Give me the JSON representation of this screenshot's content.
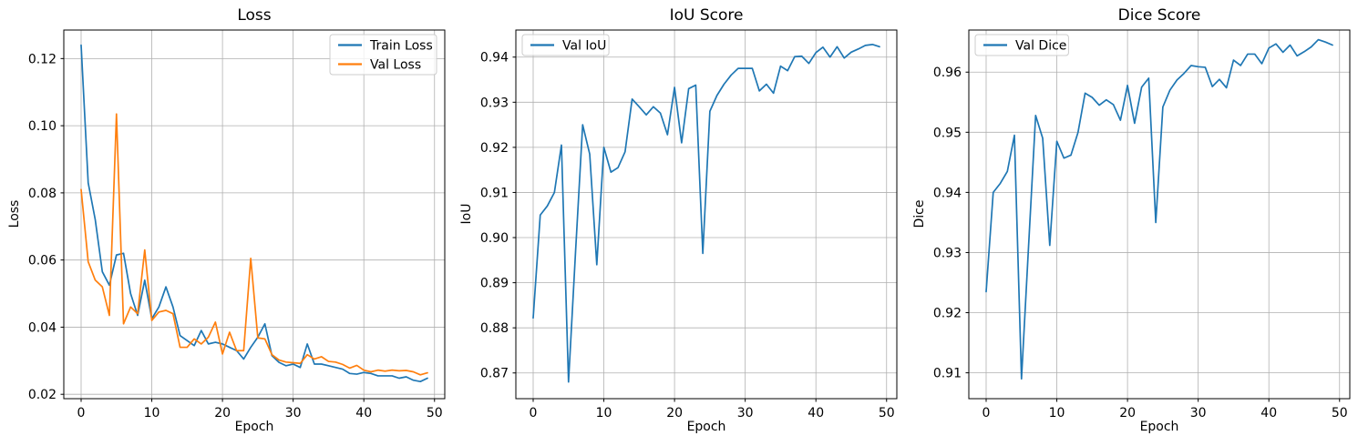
{
  "figure": {
    "background": "#ffffff"
  },
  "colors": {
    "train_line": "#1f77b4",
    "val_line": "#ff7f0e",
    "grid": "#b0b0b0",
    "spine": "#000000",
    "tick_text": "#000000",
    "legend_border": "#cccccc",
    "legend_fill": "#ffffff"
  },
  "chart_data": [
    {
      "type": "line",
      "title": "Loss",
      "xlabel": "Epoch",
      "ylabel": "Loss",
      "grid": true,
      "legend_loc": "upper-right",
      "xlim": [
        -2.45,
        51.45
      ],
      "ylim": [
        0.0187,
        0.1285
      ],
      "xticks": [
        0,
        10,
        20,
        30,
        40,
        50
      ],
      "xtick_labels": [
        "0",
        "10",
        "20",
        "30",
        "40",
        "50"
      ],
      "yticks": [
        0.02,
        0.04,
        0.06,
        0.08,
        0.1,
        0.12
      ],
      "ytick_labels": [
        "0.02",
        "0.04",
        "0.06",
        "0.08",
        "0.10",
        "0.12"
      ],
      "x": [
        0,
        1,
        2,
        3,
        4,
        5,
        6,
        7,
        8,
        9,
        10,
        11,
        12,
        13,
        14,
        15,
        16,
        17,
        18,
        19,
        20,
        21,
        22,
        23,
        24,
        25,
        26,
        27,
        28,
        29,
        30,
        31,
        32,
        33,
        34,
        35,
        36,
        37,
        38,
        39,
        40,
        41,
        42,
        43,
        44,
        45,
        46,
        47,
        48,
        49
      ],
      "series": [
        {
          "name": "Train Loss",
          "color": "#1f77b4",
          "values": [
            0.124,
            0.083,
            0.072,
            0.0565,
            0.0525,
            0.0615,
            0.062,
            0.05,
            0.0435,
            0.054,
            0.0425,
            0.046,
            0.052,
            0.046,
            0.0375,
            0.036,
            0.0345,
            0.039,
            0.035,
            0.0355,
            0.035,
            0.034,
            0.033,
            0.0305,
            0.034,
            0.037,
            0.041,
            0.0315,
            0.0295,
            0.0285,
            0.029,
            0.028,
            0.035,
            0.029,
            0.029,
            0.0285,
            0.028,
            0.0275,
            0.0262,
            0.026,
            0.0265,
            0.0262,
            0.0255,
            0.0255,
            0.0255,
            0.0248,
            0.0252,
            0.0242,
            0.0238,
            0.0248
          ]
        },
        {
          "name": "Val Loss",
          "color": "#ff7f0e",
          "values": [
            0.081,
            0.0595,
            0.054,
            0.052,
            0.0435,
            0.1035,
            0.041,
            0.046,
            0.044,
            0.063,
            0.042,
            0.0445,
            0.045,
            0.044,
            0.034,
            0.034,
            0.0365,
            0.035,
            0.037,
            0.0415,
            0.032,
            0.0385,
            0.033,
            0.033,
            0.0605,
            0.0368,
            0.0365,
            0.0318,
            0.0302,
            0.0296,
            0.0294,
            0.0292,
            0.0318,
            0.0305,
            0.0312,
            0.0298,
            0.0296,
            0.0289,
            0.0278,
            0.0286,
            0.0272,
            0.0267,
            0.0272,
            0.0269,
            0.0272,
            0.027,
            0.0271,
            0.0267,
            0.0258,
            0.0264
          ]
        }
      ]
    },
    {
      "type": "line",
      "title": "IoU Score",
      "xlabel": "Epoch",
      "ylabel": "IoU",
      "grid": true,
      "legend_loc": "upper-left",
      "xlim": [
        -2.45,
        51.45
      ],
      "ylim": [
        0.8643,
        0.946
      ],
      "xticks": [
        0,
        10,
        20,
        30,
        40,
        50
      ],
      "xtick_labels": [
        "0",
        "10",
        "20",
        "30",
        "40",
        "50"
      ],
      "yticks": [
        0.87,
        0.88,
        0.89,
        0.9,
        0.91,
        0.92,
        0.93,
        0.94
      ],
      "ytick_labels": [
        "0.87",
        "0.88",
        "0.89",
        "0.90",
        "0.91",
        "0.92",
        "0.93",
        "0.94"
      ],
      "x": [
        0,
        1,
        2,
        3,
        4,
        5,
        6,
        7,
        8,
        9,
        10,
        11,
        12,
        13,
        14,
        15,
        16,
        17,
        18,
        19,
        20,
        21,
        22,
        23,
        24,
        25,
        26,
        27,
        28,
        29,
        30,
        31,
        32,
        33,
        34,
        35,
        36,
        37,
        38,
        39,
        40,
        41,
        42,
        43,
        44,
        45,
        46,
        47,
        48,
        49
      ],
      "series": [
        {
          "name": "Val IoU",
          "color": "#1f77b4",
          "values": [
            0.8822,
            0.905,
            0.907,
            0.91,
            0.9205,
            0.868,
            0.897,
            0.925,
            0.9185,
            0.894,
            0.92,
            0.9145,
            0.9155,
            0.919,
            0.9307,
            0.929,
            0.9272,
            0.929,
            0.9276,
            0.9228,
            0.9333,
            0.921,
            0.933,
            0.9338,
            0.8965,
            0.928,
            0.9315,
            0.934,
            0.936,
            0.9375,
            0.9375,
            0.9375,
            0.9325,
            0.934,
            0.932,
            0.938,
            0.937,
            0.9401,
            0.9402,
            0.9386,
            0.941,
            0.9422,
            0.94,
            0.9423,
            0.9398,
            0.9411,
            0.9418,
            0.9426,
            0.9428,
            0.9423
          ]
        }
      ]
    },
    {
      "type": "line",
      "title": "Dice Score",
      "xlabel": "Epoch",
      "ylabel": "Dice",
      "grid": true,
      "legend_loc": "upper-left",
      "xlim": [
        -2.45,
        51.45
      ],
      "ylim": [
        0.9057,
        0.967
      ],
      "xticks": [
        0,
        10,
        20,
        30,
        40,
        50
      ],
      "xtick_labels": [
        "0",
        "10",
        "20",
        "30",
        "40",
        "50"
      ],
      "yticks": [
        0.91,
        0.92,
        0.93,
        0.94,
        0.95,
        0.96
      ],
      "ytick_labels": [
        "0.91",
        "0.92",
        "0.93",
        "0.94",
        "0.95",
        "0.96"
      ],
      "x": [
        0,
        1,
        2,
        3,
        4,
        5,
        6,
        7,
        8,
        9,
        10,
        11,
        12,
        13,
        14,
        15,
        16,
        17,
        18,
        19,
        20,
        21,
        22,
        23,
        24,
        25,
        26,
        27,
        28,
        29,
        30,
        31,
        32,
        33,
        34,
        35,
        36,
        37,
        38,
        39,
        40,
        41,
        42,
        43,
        44,
        45,
        46,
        47,
        48,
        49
      ],
      "series": [
        {
          "name": "Val Dice",
          "color": "#1f77b4",
          "values": [
            0.9235,
            0.94,
            0.9415,
            0.9435,
            0.9495,
            0.909,
            0.931,
            0.9528,
            0.949,
            0.9312,
            0.9485,
            0.9457,
            0.9462,
            0.95,
            0.9565,
            0.9558,
            0.9545,
            0.9554,
            0.9546,
            0.952,
            0.9578,
            0.9515,
            0.9575,
            0.959,
            0.935,
            0.9542,
            0.957,
            0.9587,
            0.9598,
            0.9611,
            0.9609,
            0.9608,
            0.9576,
            0.9588,
            0.9574,
            0.962,
            0.9611,
            0.963,
            0.963,
            0.9614,
            0.964,
            0.9647,
            0.9633,
            0.9645,
            0.9627,
            0.9634,
            0.9642,
            0.9654,
            0.965,
            0.9645
          ]
        }
      ]
    }
  ]
}
